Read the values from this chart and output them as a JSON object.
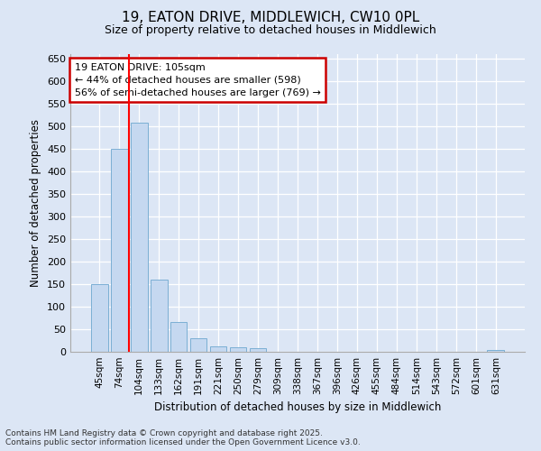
{
  "title_line1": "19, EATON DRIVE, MIDDLEWICH, CW10 0PL",
  "title_line2": "Size of property relative to detached houses in Middlewich",
  "xlabel": "Distribution of detached houses by size in Middlewich",
  "ylabel": "Number of detached properties",
  "categories": [
    "45sqm",
    "74sqm",
    "104sqm",
    "133sqm",
    "162sqm",
    "191sqm",
    "221sqm",
    "250sqm",
    "279sqm",
    "309sqm",
    "338sqm",
    "367sqm",
    "396sqm",
    "426sqm",
    "455sqm",
    "484sqm",
    "514sqm",
    "543sqm",
    "572sqm",
    "601sqm",
    "631sqm"
  ],
  "values": [
    150,
    450,
    508,
    160,
    67,
    30,
    13,
    10,
    8,
    0,
    0,
    0,
    0,
    0,
    0,
    0,
    0,
    0,
    0,
    0,
    5
  ],
  "bar_color": "#c5d8f0",
  "bar_edge_color": "#7bafd4",
  "red_line_index": 2,
  "annotation_text": "19 EATON DRIVE: 105sqm\n← 44% of detached houses are smaller (598)\n56% of semi-detached houses are larger (769) →",
  "annotation_box_facecolor": "#ffffff",
  "annotation_box_edgecolor": "#cc0000",
  "ylim": [
    0,
    660
  ],
  "yticks": [
    0,
    50,
    100,
    150,
    200,
    250,
    300,
    350,
    400,
    450,
    500,
    550,
    600,
    650
  ],
  "footnote": "Contains HM Land Registry data © Crown copyright and database right 2025.\nContains public sector information licensed under the Open Government Licence v3.0.",
  "bg_color": "#dce6f5",
  "plot_bg_color": "#dce6f5",
  "title1_fontsize": 11,
  "title2_fontsize": 9
}
